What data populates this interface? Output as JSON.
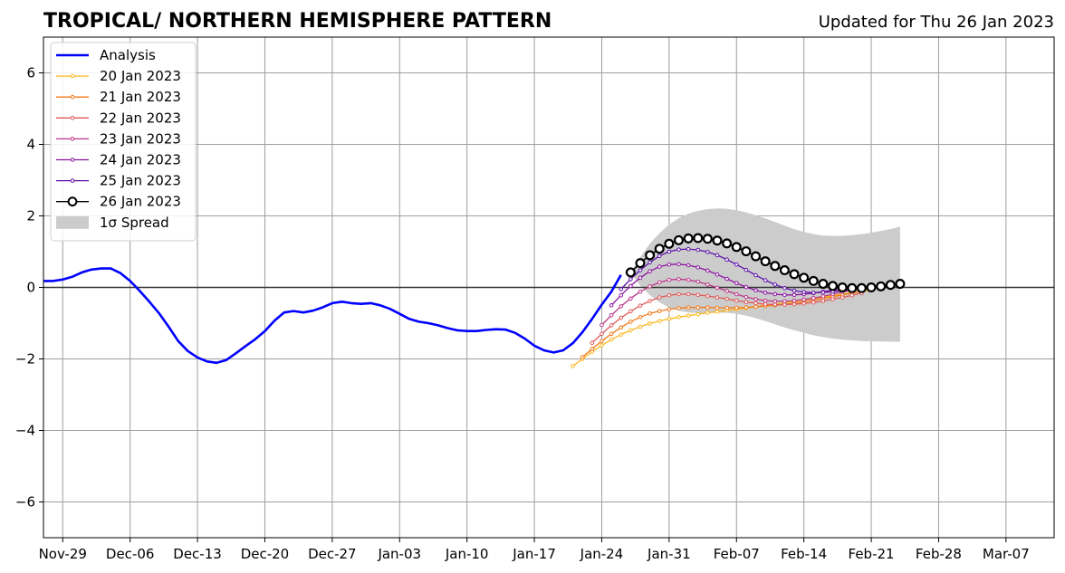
{
  "chart_data": {
    "type": "line",
    "title": "TROPICAL/ NORTHERN HEMISPHERE PATTERN",
    "subtitle": "Updated for Thu 26 Jan 2023",
    "xlabel": "",
    "ylabel": "",
    "x_ticks": [
      "Nov-29",
      "Dec-06",
      "Dec-13",
      "Dec-20",
      "Dec-27",
      "Jan-03",
      "Jan-10",
      "Jan-17",
      "Jan-24",
      "Jan-31",
      "Feb-07",
      "Feb-14",
      "Feb-21",
      "Feb-28",
      "Mar-07"
    ],
    "xlim": [
      "2022-11-27",
      "2023-03-12"
    ],
    "ylim": [
      -7,
      7
    ],
    "y_ticks": [
      -6,
      -4,
      -2,
      0,
      2,
      4,
      6
    ],
    "y_tick_labels": [
      "−6",
      "−4",
      "−2",
      "0",
      "2",
      "4",
      "6"
    ],
    "grid": true,
    "legend_position": "top-left",
    "series": [
      {
        "name": "Analysis",
        "color": "#0000ff",
        "style": "line",
        "start_date": "2022-11-27",
        "values": [
          0.18,
          0.18,
          0.22,
          0.3,
          0.42,
          0.5,
          0.53,
          0.53,
          0.4,
          0.18,
          -0.1,
          -0.4,
          -0.72,
          -1.1,
          -1.5,
          -1.78,
          -1.96,
          -2.07,
          -2.11,
          -2.03,
          -1.84,
          -1.64,
          -1.45,
          -1.22,
          -0.93,
          -0.7,
          -0.66,
          -0.7,
          -0.65,
          -0.56,
          -0.44,
          -0.4,
          -0.44,
          -0.46,
          -0.44,
          -0.5,
          -0.6,
          -0.74,
          -0.88,
          -0.96,
          -1.0,
          -1.06,
          -1.14,
          -1.2,
          -1.22,
          -1.22,
          -1.19,
          -1.17,
          -1.18,
          -1.27,
          -1.43,
          -1.63,
          -1.76,
          -1.82,
          -1.76,
          -1.56,
          -1.25,
          -0.88,
          -0.48,
          -0.12,
          0.35
        ]
      },
      {
        "name": "20 Jan 2023",
        "color": "#fbb61a",
        "style": "marker-line",
        "start_date": "2023-01-21",
        "values": [
          -2.2,
          -2.0,
          -1.8,
          -1.62,
          -1.46,
          -1.32,
          -1.2,
          -1.1,
          -1.01,
          -0.94,
          -0.88,
          -0.83,
          -0.79,
          -0.75,
          -0.71,
          -0.68,
          -0.64,
          -0.61,
          -0.58,
          -0.54,
          -0.5,
          -0.47,
          -0.43,
          -0.39,
          -0.35,
          -0.31,
          -0.27,
          -0.23,
          -0.19,
          -0.15,
          -0.11,
          -0.08
        ]
      },
      {
        "name": "21 Jan 2023",
        "color": "#f37819",
        "style": "marker-line",
        "start_date": "2023-01-22",
        "values": [
          -1.95,
          -1.72,
          -1.5,
          -1.3,
          -1.12,
          -0.96,
          -0.83,
          -0.73,
          -0.66,
          -0.61,
          -0.58,
          -0.56,
          -0.56,
          -0.56,
          -0.57,
          -0.57,
          -0.57,
          -0.56,
          -0.54,
          -0.52,
          -0.5,
          -0.47,
          -0.44,
          -0.4,
          -0.36,
          -0.31,
          -0.26,
          -0.21,
          -0.16,
          -0.11
        ]
      },
      {
        "name": "22 Jan 2023",
        "color": "#e15759",
        "style": "marker-line",
        "start_date": "2023-01-23",
        "values": [
          -1.55,
          -1.3,
          -1.06,
          -0.85,
          -0.67,
          -0.51,
          -0.38,
          -0.28,
          -0.22,
          -0.19,
          -0.19,
          -0.21,
          -0.24,
          -0.28,
          -0.32,
          -0.37,
          -0.41,
          -0.44,
          -0.47,
          -0.48,
          -0.48,
          -0.47,
          -0.45,
          -0.42,
          -0.38,
          -0.33,
          -0.28,
          -0.22,
          -0.16
        ]
      },
      {
        "name": "23 Jan 2023",
        "color": "#bc3587",
        "style": "marker-line",
        "start_date": "2023-01-24",
        "values": [
          -1.05,
          -0.78,
          -0.53,
          -0.31,
          -0.12,
          0.03,
          0.14,
          0.21,
          0.23,
          0.21,
          0.16,
          0.08,
          -0.01,
          -0.1,
          -0.19,
          -0.27,
          -0.33,
          -0.37,
          -0.39,
          -0.39,
          -0.37,
          -0.34,
          -0.3,
          -0.25,
          -0.19,
          -0.13,
          -0.07
        ]
      },
      {
        "name": "24 Jan 2023",
        "color": "#8c14a0",
        "style": "marker-line",
        "start_date": "2023-01-25",
        "values": [
          -0.5,
          -0.22,
          0.04,
          0.27,
          0.45,
          0.58,
          0.64,
          0.65,
          0.62,
          0.56,
          0.47,
          0.36,
          0.24,
          0.12,
          0.01,
          -0.08,
          -0.15,
          -0.19,
          -0.21,
          -0.21,
          -0.19,
          -0.16,
          -0.12,
          -0.08,
          -0.04,
          -0.01
        ]
      },
      {
        "name": "25 Jan 2023",
        "color": "#5c10a8",
        "style": "marker-line",
        "start_date": "2023-01-26",
        "values": [
          -0.05,
          0.23,
          0.48,
          0.7,
          0.88,
          1.0,
          1.06,
          1.07,
          1.05,
          0.99,
          0.9,
          0.78,
          0.64,
          0.49,
          0.34,
          0.2,
          0.08,
          -0.02,
          -0.09,
          -0.13,
          -0.15,
          -0.14,
          -0.12,
          -0.09,
          -0.06,
          -0.03
        ]
      },
      {
        "name": "26 Jan 2023",
        "color": "#000000",
        "style": "open-circle-line",
        "start_date": "2023-01-27",
        "values": [
          0.42,
          0.68,
          0.9,
          1.08,
          1.22,
          1.32,
          1.37,
          1.38,
          1.36,
          1.31,
          1.23,
          1.13,
          1.01,
          0.87,
          0.73,
          0.6,
          0.48,
          0.37,
          0.27,
          0.18,
          0.1,
          0.04,
          0.0,
          -0.02,
          -0.02,
          0.0,
          0.03,
          0.07,
          0.1
        ]
      }
    ],
    "spread": {
      "name": "1σ Spread",
      "legend_label": "1σ Spread",
      "color": "#cccccc",
      "start_date": "2023-01-27",
      "upper": [
        0.42,
        0.85,
        1.22,
        1.52,
        1.76,
        1.94,
        2.06,
        2.14,
        2.19,
        2.21,
        2.2,
        2.16,
        2.1,
        2.02,
        1.93,
        1.83,
        1.73,
        1.63,
        1.55,
        1.49,
        1.45,
        1.44,
        1.44,
        1.46,
        1.49,
        1.53,
        1.58,
        1.63,
        1.7
      ],
      "lower": [
        0.42,
        0.05,
        -0.22,
        -0.42,
        -0.56,
        -0.65,
        -0.7,
        -0.72,
        -0.72,
        -0.71,
        -0.71,
        -0.74,
        -0.79,
        -0.86,
        -0.94,
        -1.03,
        -1.12,
        -1.2,
        -1.27,
        -1.34,
        -1.39,
        -1.43,
        -1.46,
        -1.48,
        -1.5,
        -1.51,
        -1.51,
        -1.52,
        -1.52
      ]
    },
    "legend": [
      "Analysis",
      "20 Jan 2023",
      "21 Jan 2023",
      "22 Jan 2023",
      "23 Jan 2023",
      "24 Jan 2023",
      "25 Jan 2023",
      "26 Jan 2023",
      "1σ Spread"
    ]
  }
}
